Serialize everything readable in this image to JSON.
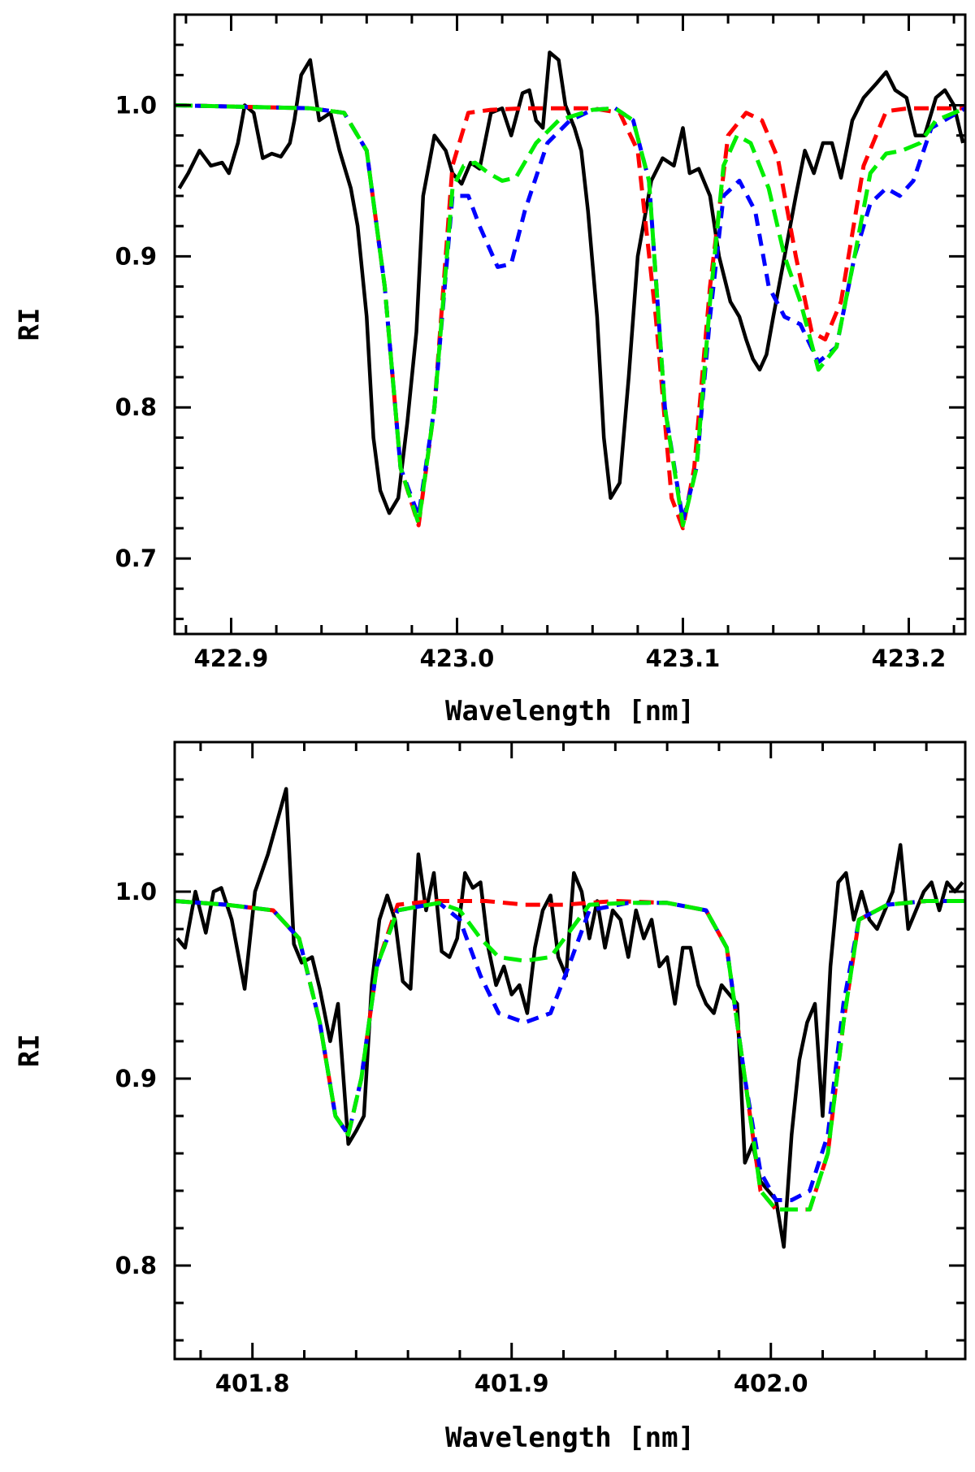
{
  "chart_data": [
    {
      "type": "line",
      "xlabel": "Wavelength [nm]",
      "ylabel": "RI",
      "xlim": [
        422.875,
        423.225
      ],
      "ylim": [
        0.65,
        1.06
      ],
      "xticks": [
        422.9,
        423.0,
        423.1,
        423.2
      ],
      "xtick_labels": [
        "422.9",
        "423.0",
        "423.1",
        "423.2"
      ],
      "yticks": [
        0.7,
        0.8,
        0.9,
        1.0
      ],
      "ytick_labels": [
        "0.7",
        "0.8",
        "0.9",
        "1.0"
      ],
      "grid": false,
      "series": [
        {
          "style": "solid",
          "color": "#000000",
          "x": [
            422.877,
            422.881,
            422.886,
            422.891,
            422.896,
            422.899,
            422.903,
            422.906,
            422.91,
            422.914,
            422.918,
            422.922,
            422.926,
            422.928,
            422.931,
            422.935,
            422.939,
            422.944,
            422.948,
            422.953,
            422.956,
            422.96,
            422.963,
            422.966,
            422.97,
            422.974,
            422.978,
            422.982,
            422.985,
            422.99,
            422.995,
            422.998,
            423.002,
            423.006,
            423.01,
            423.015,
            423.02,
            423.024,
            423.029,
            423.032,
            423.035,
            423.038,
            423.041,
            423.045,
            423.048,
            423.052,
            423.055,
            423.058,
            423.062,
            423.065,
            423.068,
            423.072,
            423.076,
            423.08,
            423.086,
            423.091,
            423.096,
            423.1,
            423.103,
            423.107,
            423.112,
            423.116,
            423.121,
            423.125,
            423.128,
            423.131,
            423.134,
            423.137,
            423.14,
            423.145,
            423.15,
            423.154,
            423.158,
            423.162,
            423.166,
            423.17,
            423.175,
            423.18,
            423.186,
            423.19,
            423.194,
            423.199,
            423.203,
            423.207,
            423.212,
            423.216,
            423.22,
            423.224
          ],
          "y": [
            0.945,
            0.955,
            0.97,
            0.96,
            0.962,
            0.955,
            0.975,
            1.0,
            0.995,
            0.965,
            0.968,
            0.966,
            0.975,
            0.99,
            1.02,
            1.03,
            0.99,
            0.995,
            0.97,
            0.945,
            0.92,
            0.86,
            0.78,
            0.745,
            0.73,
            0.74,
            0.79,
            0.85,
            0.94,
            0.98,
            0.97,
            0.955,
            0.948,
            0.962,
            0.958,
            0.995,
            0.998,
            0.98,
            1.008,
            1.01,
            0.99,
            0.985,
            1.035,
            1.03,
            1.0,
            0.985,
            0.97,
            0.93,
            0.86,
            0.78,
            0.74,
            0.75,
            0.82,
            0.9,
            0.95,
            0.965,
            0.96,
            0.985,
            0.955,
            0.958,
            0.94,
            0.9,
            0.87,
            0.86,
            0.845,
            0.832,
            0.825,
            0.835,
            0.86,
            0.9,
            0.94,
            0.97,
            0.955,
            0.975,
            0.975,
            0.952,
            0.99,
            1.005,
            1.015,
            1.022,
            1.01,
            1.005,
            0.98,
            0.98,
            1.005,
            1.01,
            1.0,
            0.975
          ]
        },
        {
          "style": "dashed",
          "color": "#ff0000",
          "x": [
            422.875,
            422.905,
            422.935,
            422.95,
            422.96,
            422.968,
            422.975,
            422.983,
            422.99,
            422.998,
            423.005,
            423.015,
            423.03,
            423.045,
            423.06,
            423.072,
            423.08,
            423.088,
            423.095,
            423.1,
            423.105,
            423.112,
            423.12,
            423.128,
            423.135,
            423.142,
            423.15,
            423.157,
            423.163,
            423.17,
            423.18,
            423.19,
            423.2,
            423.225
          ],
          "y": [
            1.0,
            0.999,
            0.998,
            0.995,
            0.97,
            0.88,
            0.76,
            0.722,
            0.8,
            0.96,
            0.995,
            0.997,
            0.998,
            0.998,
            0.998,
            0.995,
            0.97,
            0.86,
            0.74,
            0.72,
            0.76,
            0.88,
            0.98,
            0.995,
            0.99,
            0.965,
            0.9,
            0.85,
            0.845,
            0.87,
            0.96,
            0.996,
            0.998,
            0.998
          ]
        },
        {
          "style": "dashed",
          "color": "#0000ff",
          "x": [
            422.875,
            422.905,
            422.935,
            422.95,
            422.96,
            422.968,
            422.975,
            422.983,
            422.99,
            422.998,
            423.005,
            423.01,
            423.018,
            423.024,
            423.03,
            423.04,
            423.05,
            423.06,
            423.07,
            423.078,
            423.085,
            423.092,
            423.1,
            423.106,
            423.112,
            423.118,
            423.125,
            423.132,
            423.138,
            423.145,
            423.152,
            423.16,
            423.168,
            423.176,
            423.183,
            423.19,
            423.196,
            423.202,
            423.21,
            423.225
          ],
          "y": [
            1.0,
            0.999,
            0.998,
            0.995,
            0.97,
            0.88,
            0.76,
            0.728,
            0.8,
            0.94,
            0.94,
            0.92,
            0.893,
            0.895,
            0.93,
            0.975,
            0.99,
            0.997,
            0.998,
            0.99,
            0.95,
            0.8,
            0.725,
            0.76,
            0.86,
            0.94,
            0.95,
            0.93,
            0.88,
            0.86,
            0.855,
            0.83,
            0.84,
            0.9,
            0.935,
            0.945,
            0.94,
            0.95,
            0.985,
            0.998
          ]
        },
        {
          "style": "dashed",
          "color": "#00ee00",
          "x": [
            422.875,
            422.905,
            422.935,
            422.95,
            422.96,
            422.968,
            422.975,
            422.983,
            422.99,
            422.998,
            423.003,
            423.008,
            423.014,
            423.02,
            423.026,
            423.035,
            423.045,
            423.06,
            423.07,
            423.078,
            423.085,
            423.092,
            423.1,
            423.106,
            423.112,
            423.118,
            423.124,
            423.13,
            423.138,
            423.145,
            423.152,
            423.16,
            423.168,
            423.176,
            423.183,
            423.19,
            423.197,
            423.205,
            423.212,
            423.225
          ],
          "y": [
            1.0,
            0.999,
            0.998,
            0.995,
            0.97,
            0.88,
            0.76,
            0.723,
            0.8,
            0.945,
            0.96,
            0.962,
            0.955,
            0.95,
            0.952,
            0.975,
            0.99,
            0.997,
            0.998,
            0.99,
            0.95,
            0.8,
            0.722,
            0.76,
            0.87,
            0.96,
            0.98,
            0.975,
            0.945,
            0.9,
            0.87,
            0.825,
            0.84,
            0.9,
            0.955,
            0.968,
            0.97,
            0.975,
            0.99,
            0.998
          ]
        }
      ]
    },
    {
      "type": "line",
      "xlabel": "Wavelength [nm]",
      "ylabel": "RI",
      "xlim": [
        401.77,
        402.075
      ],
      "ylim": [
        0.75,
        1.08
      ],
      "xticks": [
        401.8,
        401.9,
        402.0
      ],
      "xtick_labels": [
        "401.8",
        "401.9",
        "402.0"
      ],
      "yticks": [
        0.8,
        0.9,
        1.0
      ],
      "ytick_labels": [
        "0.8",
        "0.9",
        "1.0"
      ],
      "grid": false,
      "series": [
        {
          "style": "solid",
          "color": "#000000",
          "x": [
            401.771,
            401.774,
            401.778,
            401.782,
            401.785,
            401.788,
            401.792,
            401.797,
            401.801,
            401.806,
            401.81,
            401.813,
            401.816,
            401.819,
            401.823,
            401.826,
            401.83,
            401.833,
            401.837,
            401.84,
            401.843,
            401.846,
            401.849,
            401.852,
            401.855,
            401.858,
            401.861,
            401.864,
            401.867,
            401.87,
            401.873,
            401.876,
            401.879,
            401.882,
            401.885,
            401.888,
            401.891,
            401.894,
            401.897,
            401.9,
            401.903,
            401.906,
            401.909,
            401.912,
            401.915,
            401.918,
            401.921,
            401.924,
            401.927,
            401.93,
            401.933,
            401.936,
            401.939,
            401.942,
            401.945,
            401.948,
            401.951,
            401.954,
            401.957,
            401.96,
            401.963,
            401.966,
            401.969,
            401.972,
            401.975,
            401.978,
            401.981,
            401.984,
            401.987,
            401.99,
            401.993,
            401.996,
            401.999,
            402.002,
            402.005,
            402.008,
            402.011,
            402.014,
            402.017,
            402.02,
            402.023,
            402.026,
            402.029,
            402.032,
            402.035,
            402.038,
            402.041,
            402.044,
            402.047,
            402.05,
            402.053,
            402.056,
            402.059,
            402.062,
            402.065,
            402.068,
            402.071,
            402.074
          ],
          "y": [
            0.975,
            0.97,
            1.0,
            0.978,
            1.0,
            1.002,
            0.985,
            0.948,
            1.0,
            1.02,
            1.04,
            1.055,
            0.972,
            0.962,
            0.965,
            0.948,
            0.92,
            0.94,
            0.865,
            0.872,
            0.88,
            0.95,
            0.985,
            0.998,
            0.985,
            0.952,
            0.948,
            1.02,
            0.99,
            1.01,
            0.968,
            0.965,
            0.975,
            1.01,
            1.002,
            1.005,
            0.97,
            0.95,
            0.96,
            0.945,
            0.95,
            0.935,
            0.97,
            0.99,
            0.998,
            0.965,
            0.955,
            1.01,
            1.0,
            0.975,
            0.995,
            0.97,
            0.99,
            0.985,
            0.965,
            0.99,
            0.975,
            0.985,
            0.96,
            0.965,
            0.94,
            0.97,
            0.97,
            0.95,
            0.94,
            0.935,
            0.95,
            0.945,
            0.94,
            0.855,
            0.865,
            0.845,
            0.84,
            0.835,
            0.81,
            0.87,
            0.91,
            0.93,
            0.94,
            0.88,
            0.96,
            1.005,
            1.01,
            0.985,
            1.0,
            0.985,
            0.98,
            0.99,
            1.0,
            1.025,
            0.98,
            0.99,
            1.0,
            1.005,
            0.99,
            1.005,
            1.0,
            1.005
          ]
        },
        {
          "style": "dashed",
          "color": "#ff0000",
          "x": [
            401.77,
            401.79,
            401.808,
            401.818,
            401.826,
            401.832,
            401.837,
            401.842,
            401.848,
            401.856,
            401.87,
            401.89,
            401.905,
            401.92,
            401.94,
            401.96,
            401.975,
            401.983,
            401.99,
            401.996,
            402.002,
            402.008,
            402.015,
            402.022,
            402.028,
            402.034,
            402.045,
            402.06,
            402.075
          ],
          "y": [
            0.995,
            0.993,
            0.99,
            0.975,
            0.93,
            0.88,
            0.87,
            0.9,
            0.96,
            0.993,
            0.995,
            0.995,
            0.993,
            0.993,
            0.995,
            0.994,
            0.99,
            0.97,
            0.9,
            0.84,
            0.83,
            0.83,
            0.83,
            0.86,
            0.93,
            0.985,
            0.993,
            0.995,
            0.995
          ]
        },
        {
          "style": "dashed",
          "color": "#0000ff",
          "x": [
            401.77,
            401.79,
            401.808,
            401.818,
            401.826,
            401.832,
            401.837,
            401.842,
            401.848,
            401.856,
            401.872,
            401.88,
            401.888,
            401.895,
            401.905,
            401.915,
            401.922,
            401.93,
            401.945,
            401.96,
            401.975,
            401.983,
            401.99,
            401.996,
            402.002,
            402.008,
            402.015,
            402.022,
            402.028,
            402.034,
            402.045,
            402.06,
            402.075
          ],
          "y": [
            0.995,
            0.993,
            0.99,
            0.975,
            0.93,
            0.88,
            0.87,
            0.9,
            0.96,
            0.99,
            0.994,
            0.985,
            0.955,
            0.935,
            0.93,
            0.935,
            0.96,
            0.99,
            0.994,
            0.994,
            0.99,
            0.97,
            0.9,
            0.85,
            0.835,
            0.835,
            0.84,
            0.87,
            0.94,
            0.985,
            0.993,
            0.995,
            0.995
          ]
        },
        {
          "style": "dashed",
          "color": "#00ee00",
          "x": [
            401.77,
            401.79,
            401.808,
            401.818,
            401.826,
            401.832,
            401.837,
            401.842,
            401.848,
            401.856,
            401.872,
            401.88,
            401.888,
            401.895,
            401.905,
            401.915,
            401.922,
            401.93,
            401.945,
            401.96,
            401.975,
            401.983,
            401.99,
            401.996,
            402.002,
            402.008,
            402.015,
            402.022,
            402.028,
            402.034,
            402.045,
            402.06,
            402.075
          ],
          "y": [
            0.995,
            0.993,
            0.99,
            0.975,
            0.93,
            0.88,
            0.87,
            0.9,
            0.96,
            0.99,
            0.994,
            0.99,
            0.975,
            0.965,
            0.963,
            0.965,
            0.978,
            0.993,
            0.994,
            0.994,
            0.99,
            0.97,
            0.9,
            0.84,
            0.83,
            0.83,
            0.83,
            0.86,
            0.93,
            0.985,
            0.993,
            0.995,
            0.995
          ]
        }
      ]
    }
  ]
}
